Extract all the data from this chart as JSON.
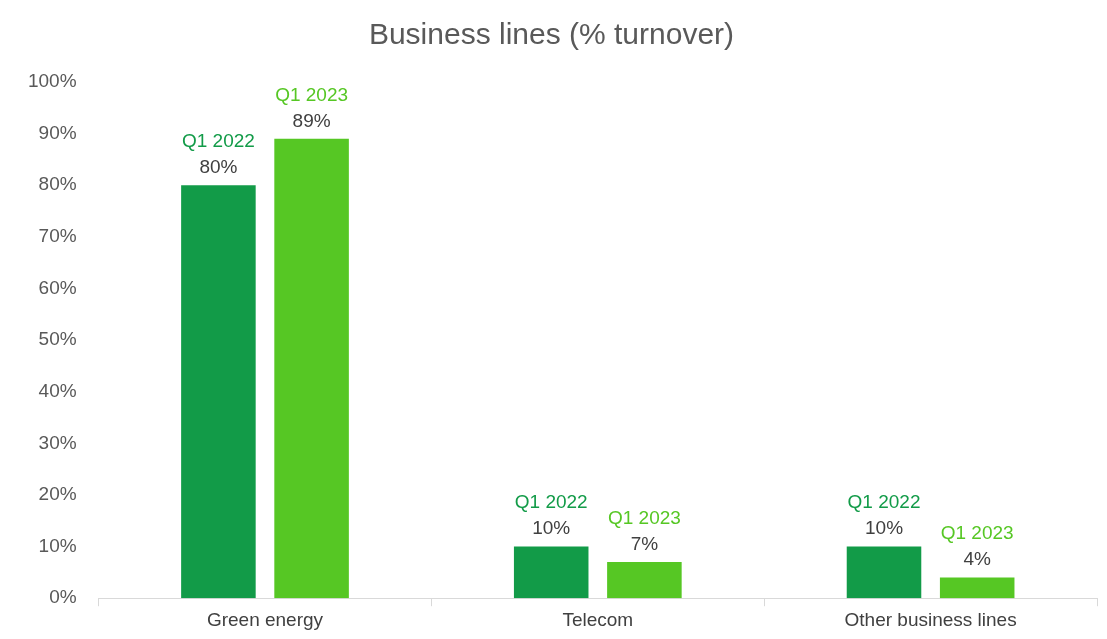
{
  "chart_data": {
    "type": "bar",
    "title": "Business lines (% turnover)",
    "categories": [
      "Green energy",
      "Telecom",
      "Other business lines"
    ],
    "series": [
      {
        "name": "Q1 2022",
        "color": "#129b48",
        "values": [
          80,
          10,
          10
        ],
        "value_labels": [
          "80%",
          "10%",
          "10%"
        ]
      },
      {
        "name": "Q1 2023",
        "color": "#56c724",
        "values": [
          89,
          7,
          4
        ],
        "value_labels": [
          "89%",
          "7%",
          "4%"
        ]
      }
    ],
    "ylim": [
      0,
      100
    ],
    "yticks": [
      {
        "value": 0,
        "label": "0%"
      },
      {
        "value": 10,
        "label": "10%"
      },
      {
        "value": 20,
        "label": "20%"
      },
      {
        "value": 30,
        "label": "30%"
      },
      {
        "value": 40,
        "label": "40%"
      },
      {
        "value": 50,
        "label": "50%"
      },
      {
        "value": 60,
        "label": "60%"
      },
      {
        "value": 70,
        "label": "70%"
      },
      {
        "value": 80,
        "label": "80%"
      },
      {
        "value": 90,
        "label": "90%"
      },
      {
        "value": 100,
        "label": "100%"
      }
    ],
    "grid": false,
    "legend": false
  }
}
